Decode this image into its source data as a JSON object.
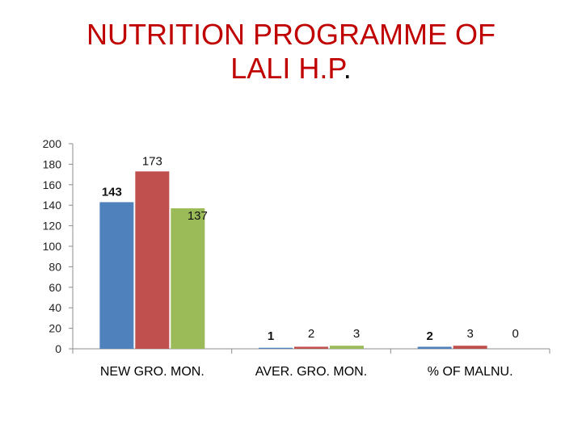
{
  "title_line1": "NUTRITION PROGRAMME OF",
  "title_line2": "LALI  H.P",
  "title_dot": ".",
  "chart_data": {
    "type": "bar",
    "title": "NUTRITION PROGRAMME OF LALI  H.P.",
    "xlabel": "",
    "ylabel": "",
    "categories": [
      "NEW GRO. MON.",
      "AVER. GRO. MON.",
      "% OF MALNU."
    ],
    "series": [
      {
        "color": "#4f81bd",
        "values": [
          143,
          1,
          2
        ],
        "labels": [
          "143",
          "1",
          "2"
        ],
        "bold": true
      },
      {
        "color": "#c0504d",
        "values": [
          173,
          2,
          3
        ],
        "labels": [
          "173",
          "2",
          "3"
        ],
        "bold": false
      },
      {
        "color": "#9bbb59",
        "values": [
          137,
          3,
          0
        ],
        "labels": [
          "137",
          "3",
          "0"
        ],
        "bold": false
      }
    ],
    "ylim": [
      0,
      200
    ],
    "yticks": [
      "0",
      "20",
      "40",
      "60",
      "80",
      "100",
      "120",
      "140",
      "160",
      "180",
      "200"
    ],
    "grid": false,
    "legend": "none"
  }
}
